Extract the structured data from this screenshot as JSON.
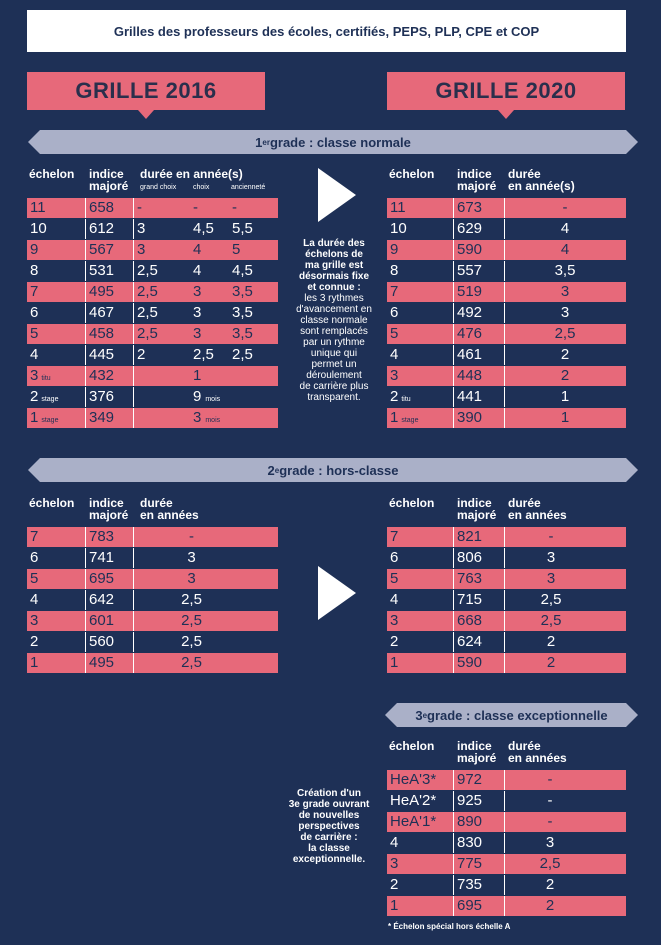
{
  "title": "Grilles des professeurs des écoles, certifiés, PEPS, PLP, CPE et COP",
  "grille_left": "GRILLE 2016",
  "grille_right": "GRILLE 2020",
  "grade1": {
    "banner_sup": "er",
    "banner_pre": "1",
    "banner_post": " grade : classe normale",
    "left_headers": {
      "echelon": "échelon",
      "indice1": "indice",
      "indice2": "majoré",
      "duree": "durée en année(s)",
      "grand_choix": "grand choix",
      "choix": "choix",
      "anciennete": "ancienneté"
    },
    "right_headers": {
      "echelon": "échelon",
      "indice1": "indice",
      "indice2": "majoré",
      "duree1": "durée",
      "duree2": "en année(s)"
    },
    "left_rows": [
      {
        "e": "11",
        "sub": "",
        "i": "658",
        "a": "-",
        "b": "-",
        "c": "-"
      },
      {
        "e": "10",
        "sub": "",
        "i": "612",
        "a": "3",
        "b": "4,5",
        "c": "5,5"
      },
      {
        "e": "9",
        "sub": "",
        "i": "567",
        "a": "3",
        "b": "4",
        "c": "5"
      },
      {
        "e": "8",
        "sub": "",
        "i": "531",
        "a": "2,5",
        "b": "4",
        "c": "4,5"
      },
      {
        "e": "7",
        "sub": "",
        "i": "495",
        "a": "2,5",
        "b": "3",
        "c": "3,5"
      },
      {
        "e": "6",
        "sub": "",
        "i": "467",
        "a": "2,5",
        "b": "3",
        "c": "3,5"
      },
      {
        "e": "5",
        "sub": "",
        "i": "458",
        "a": "2,5",
        "b": "3",
        "c": "3,5"
      },
      {
        "e": "4",
        "sub": "",
        "i": "445",
        "a": "2",
        "b": "2,5",
        "c": "2,5"
      },
      {
        "e": "3",
        "sub": "titu",
        "i": "432",
        "a": "",
        "b": "1",
        "bsub": "",
        "c": ""
      },
      {
        "e": "2",
        "sub": "stage",
        "i": "376",
        "a": "",
        "b": "9",
        "bsub": "mois",
        "c": ""
      },
      {
        "e": "1",
        "sub": "stage",
        "i": "349",
        "a": "",
        "b": "3",
        "bsub": "mois",
        "c": ""
      }
    ],
    "right_rows": [
      {
        "e": "11",
        "sub": "",
        "i": "673",
        "d": "-"
      },
      {
        "e": "10",
        "sub": "",
        "i": "629",
        "d": "4"
      },
      {
        "e": "9",
        "sub": "",
        "i": "590",
        "d": "4"
      },
      {
        "e": "8",
        "sub": "",
        "i": "557",
        "d": "3,5"
      },
      {
        "e": "7",
        "sub": "",
        "i": "519",
        "d": "3"
      },
      {
        "e": "6",
        "sub": "",
        "i": "492",
        "d": "3"
      },
      {
        "e": "5",
        "sub": "",
        "i": "476",
        "d": "2,5"
      },
      {
        "e": "4",
        "sub": "",
        "i": "461",
        "d": "2"
      },
      {
        "e": "3",
        "sub": "",
        "i": "448",
        "d": "2"
      },
      {
        "e": "2",
        "sub": "titu",
        "i": "441",
        "d": "1"
      },
      {
        "e": "1",
        "sub": "stage",
        "i": "390",
        "d": "1"
      }
    ],
    "note_bold": [
      "La durée des",
      "échelons de",
      "ma grille est",
      "désormais fixe",
      "et connue :"
    ],
    "note_normal": [
      "les 3 rythmes",
      "d'avancement en",
      "classe normale",
      "sont remplacés",
      "par un rythme",
      "unique qui",
      "permet un",
      "déroulement",
      "de carrière plus",
      "transparent."
    ]
  },
  "grade2": {
    "banner_pre": "2",
    "banner_sup": "e",
    "banner_post": " grade : hors-classe",
    "headers": {
      "echelon": "échelon",
      "indice1": "indice",
      "indice2": "majoré",
      "duree1": "durée",
      "duree2": "en années"
    },
    "left_rows": [
      {
        "e": "7",
        "i": "783",
        "d": "-"
      },
      {
        "e": "6",
        "i": "741",
        "d": "3"
      },
      {
        "e": "5",
        "i": "695",
        "d": "3"
      },
      {
        "e": "4",
        "i": "642",
        "d": "2,5"
      },
      {
        "e": "3",
        "i": "601",
        "d": "2,5"
      },
      {
        "e": "2",
        "i": "560",
        "d": "2,5"
      },
      {
        "e": "1",
        "i": "495",
        "d": "2,5"
      }
    ],
    "right_rows": [
      {
        "e": "7",
        "i": "821",
        "d": "-"
      },
      {
        "e": "6",
        "i": "806",
        "d": "3"
      },
      {
        "e": "5",
        "i": "763",
        "d": "3"
      },
      {
        "e": "4",
        "i": "715",
        "d": "2,5"
      },
      {
        "e": "3",
        "i": "668",
        "d": "2,5"
      },
      {
        "e": "2",
        "i": "624",
        "d": "2"
      },
      {
        "e": "1",
        "i": "590",
        "d": "2"
      }
    ]
  },
  "grade3": {
    "banner_pre": "3",
    "banner_sup": "e",
    "banner_post": " grade : classe exceptionnelle",
    "headers": {
      "echelon": "échelon",
      "indice1": "indice",
      "indice2": "majoré",
      "duree1": "durée",
      "duree2": "en années"
    },
    "rows": [
      {
        "e": "HeA'3*",
        "i": "972",
        "d": "-"
      },
      {
        "e": "HeA'2*",
        "i": "925",
        "d": "-"
      },
      {
        "e": "HeA'1*",
        "i": "890",
        "d": "-"
      },
      {
        "e": "4",
        "i": "830",
        "d": "3"
      },
      {
        "e": "3",
        "i": "775",
        "d": "2,5"
      },
      {
        "e": "2",
        "i": "735",
        "d": "2"
      },
      {
        "e": "1",
        "i": "695",
        "d": "2"
      }
    ],
    "note": [
      "Création d'un",
      "3e grade ouvrant",
      "de nouvelles",
      "perspectives",
      "de carrière :",
      "la classe",
      "exceptionnelle."
    ],
    "footnote": "* Échelon spécial hors échelle A"
  },
  "colors": {
    "background": "#1e3056",
    "pink": "#e7697a",
    "banner": "#aab0c8"
  }
}
